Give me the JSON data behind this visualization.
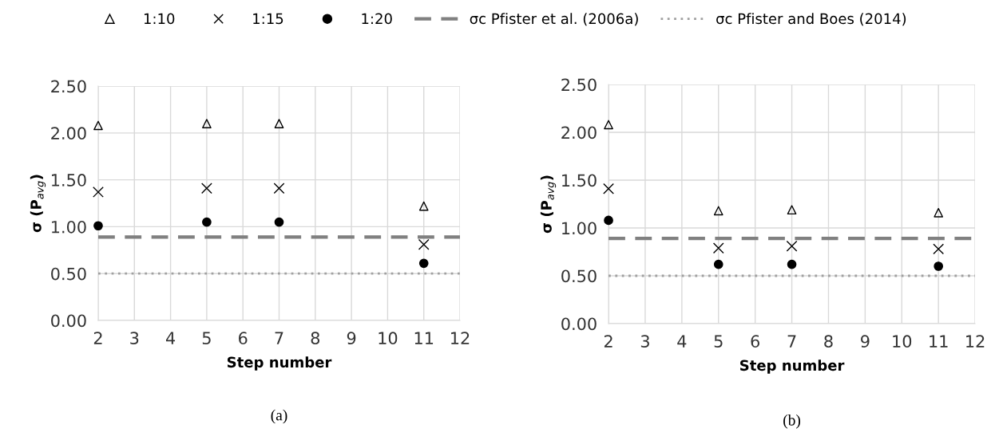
{
  "chart_data": [
    {
      "type": "scatter",
      "xlabel": "Step number",
      "ylabel": "σ (P$_{avg}$)",
      "x": [
        2,
        5,
        7,
        11
      ],
      "series": [
        {
          "name": "1:10",
          "color": "#000000",
          "marker": "triangle",
          "values": [
            2.08,
            2.1,
            2.1,
            1.22
          ]
        },
        {
          "name": "1:15",
          "color": "#000000",
          "marker": "cross",
          "values": [
            1.37,
            1.41,
            1.41,
            0.81
          ]
        },
        {
          "name": "1:20",
          "color": "#000000",
          "marker": "circle",
          "values": [
            1.01,
            1.05,
            1.05,
            0.61
          ]
        }
      ],
      "ref_lines": [
        {
          "axis": "y",
          "value": 0.89,
          "label": "σc Pfister et al. (2006a)",
          "color": "#808080",
          "line_style": "dashed"
        },
        {
          "axis": "y",
          "value": 0.5,
          "label": "σc Pfister and Boes (2014)",
          "color": "#a0a0a0",
          "line_style": "dotted"
        }
      ],
      "xlim": [
        2,
        12
      ],
      "xticks": [
        2,
        3,
        4,
        5,
        6,
        7,
        8,
        9,
        10,
        11,
        12
      ],
      "ylim": [
        0,
        2.5
      ],
      "yticks": [
        {
          "value": 0,
          "label": "0.00"
        },
        {
          "value": 0.5,
          "label": "0.50"
        },
        {
          "value": 1,
          "label": "1.00"
        },
        {
          "value": 1.5,
          "label": "1.50"
        },
        {
          "value": 2,
          "label": "2.00"
        },
        {
          "value": 2.5,
          "label": "2.50"
        }
      ],
      "grid": true,
      "legend": "top",
      "annotations": [
        "(a)"
      ]
    },
    {
      "type": "scatter",
      "xlabel": "Step number",
      "ylabel": "σ (P$_{avg}$)",
      "x": [
        2,
        5,
        7,
        11
      ],
      "series": [
        {
          "color": "#000000",
          "marker": "triangle",
          "values": [
            2.08,
            1.18,
            1.19,
            1.16
          ]
        },
        {
          "color": "#000000",
          "marker": "cross",
          "values": [
            1.41,
            0.79,
            0.81,
            0.78
          ]
        },
        {
          "color": "#000000",
          "marker": "circle",
          "values": [
            1.08,
            0.62,
            0.62,
            0.6
          ]
        }
      ],
      "ref_lines": [
        {
          "axis": "y",
          "value": 0.89,
          "color": "#808080",
          "line_style": "dashed"
        },
        {
          "axis": "y",
          "value": 0.5,
          "color": "#a0a0a0",
          "line_style": "dotted"
        }
      ],
      "xlim": [
        2,
        12
      ],
      "xticks": [
        2,
        3,
        4,
        5,
        6,
        7,
        8,
        9,
        10,
        11,
        12
      ],
      "ylim": [
        0,
        2.5
      ],
      "yticks": [
        {
          "value": 0,
          "label": "0.00"
        },
        {
          "value": 0.5,
          "label": "0.50"
        },
        {
          "value": 1,
          "label": "1.00"
        },
        {
          "value": 1.5,
          "label": "1.50"
        },
        {
          "value": 2,
          "label": "2.00"
        },
        {
          "value": 2.5,
          "label": "2.50"
        }
      ],
      "grid": true,
      "annotations": [
        "(b)"
      ]
    }
  ]
}
